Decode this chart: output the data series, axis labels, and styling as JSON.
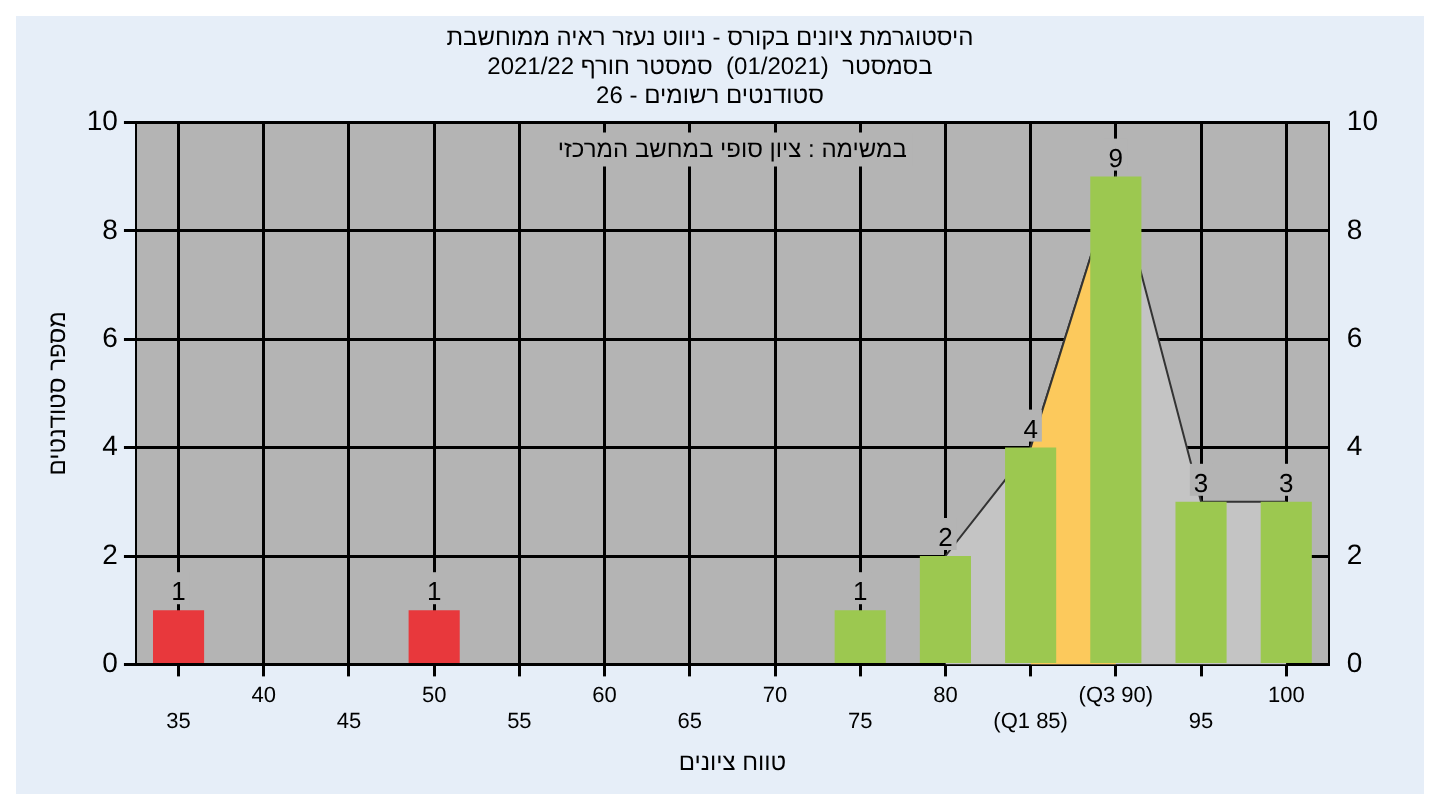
{
  "chart_data": {
    "type": "bar",
    "title": [
      "היסטוגרמת ציונים בקורס - ניווט נעזר ראיה ממוחשבת",
      "בסמסטר  (01/2021)  סמסטר חורף 2021/22",
      "סטודנטים רשומים - 26"
    ],
    "xlabel": "טווח ציונים",
    "ylabel": "מספר סטודנטים",
    "annotations": [
      "במשימה : ציון סופי במחשב המרכזי"
    ],
    "categories": [
      "35",
      "40",
      "45",
      "50",
      "55",
      "60",
      "65",
      "70",
      "75",
      "80",
      "(Q1 85)",
      "(Q3 90)",
      "95",
      "100"
    ],
    "series": [
      {
        "values": [
          1,
          0,
          0,
          1,
          0,
          0,
          0,
          0,
          1,
          2,
          4,
          9,
          3,
          3
        ],
        "colors": [
          "#e8383c",
          "#9cc850",
          "#9cc850",
          "#e8383c",
          "#9cc850",
          "#9cc850",
          "#9cc850",
          "#9cc850",
          "#9cc850",
          "#9cc850",
          "#9cc850",
          "#9cc850",
          "#9cc850",
          "#9cc850"
        ],
        "value_labels": [
          "1",
          null,
          null,
          "1",
          null,
          null,
          null,
          null,
          "1",
          "2",
          "4",
          "9",
          "3",
          "3"
        ]
      },
      {
        "type": "area",
        "color": "#c4c4c4",
        "values": [
          null,
          null,
          null,
          null,
          null,
          null,
          null,
          null,
          null,
          2,
          4,
          9,
          3,
          3
        ]
      },
      {
        "type": "area",
        "color": "#fcc95c",
        "values": [
          null,
          null,
          null,
          null,
          null,
          null,
          null,
          null,
          null,
          null,
          4,
          9,
          null,
          null
        ]
      }
    ],
    "ylim": [
      0,
      10
    ],
    "yticks": [
      0,
      2,
      4,
      6,
      8,
      10
    ],
    "y2lim": [
      0,
      10
    ],
    "y2ticks": [
      0,
      2,
      4,
      6,
      8,
      10
    ],
    "grid": true,
    "legend": false
  }
}
